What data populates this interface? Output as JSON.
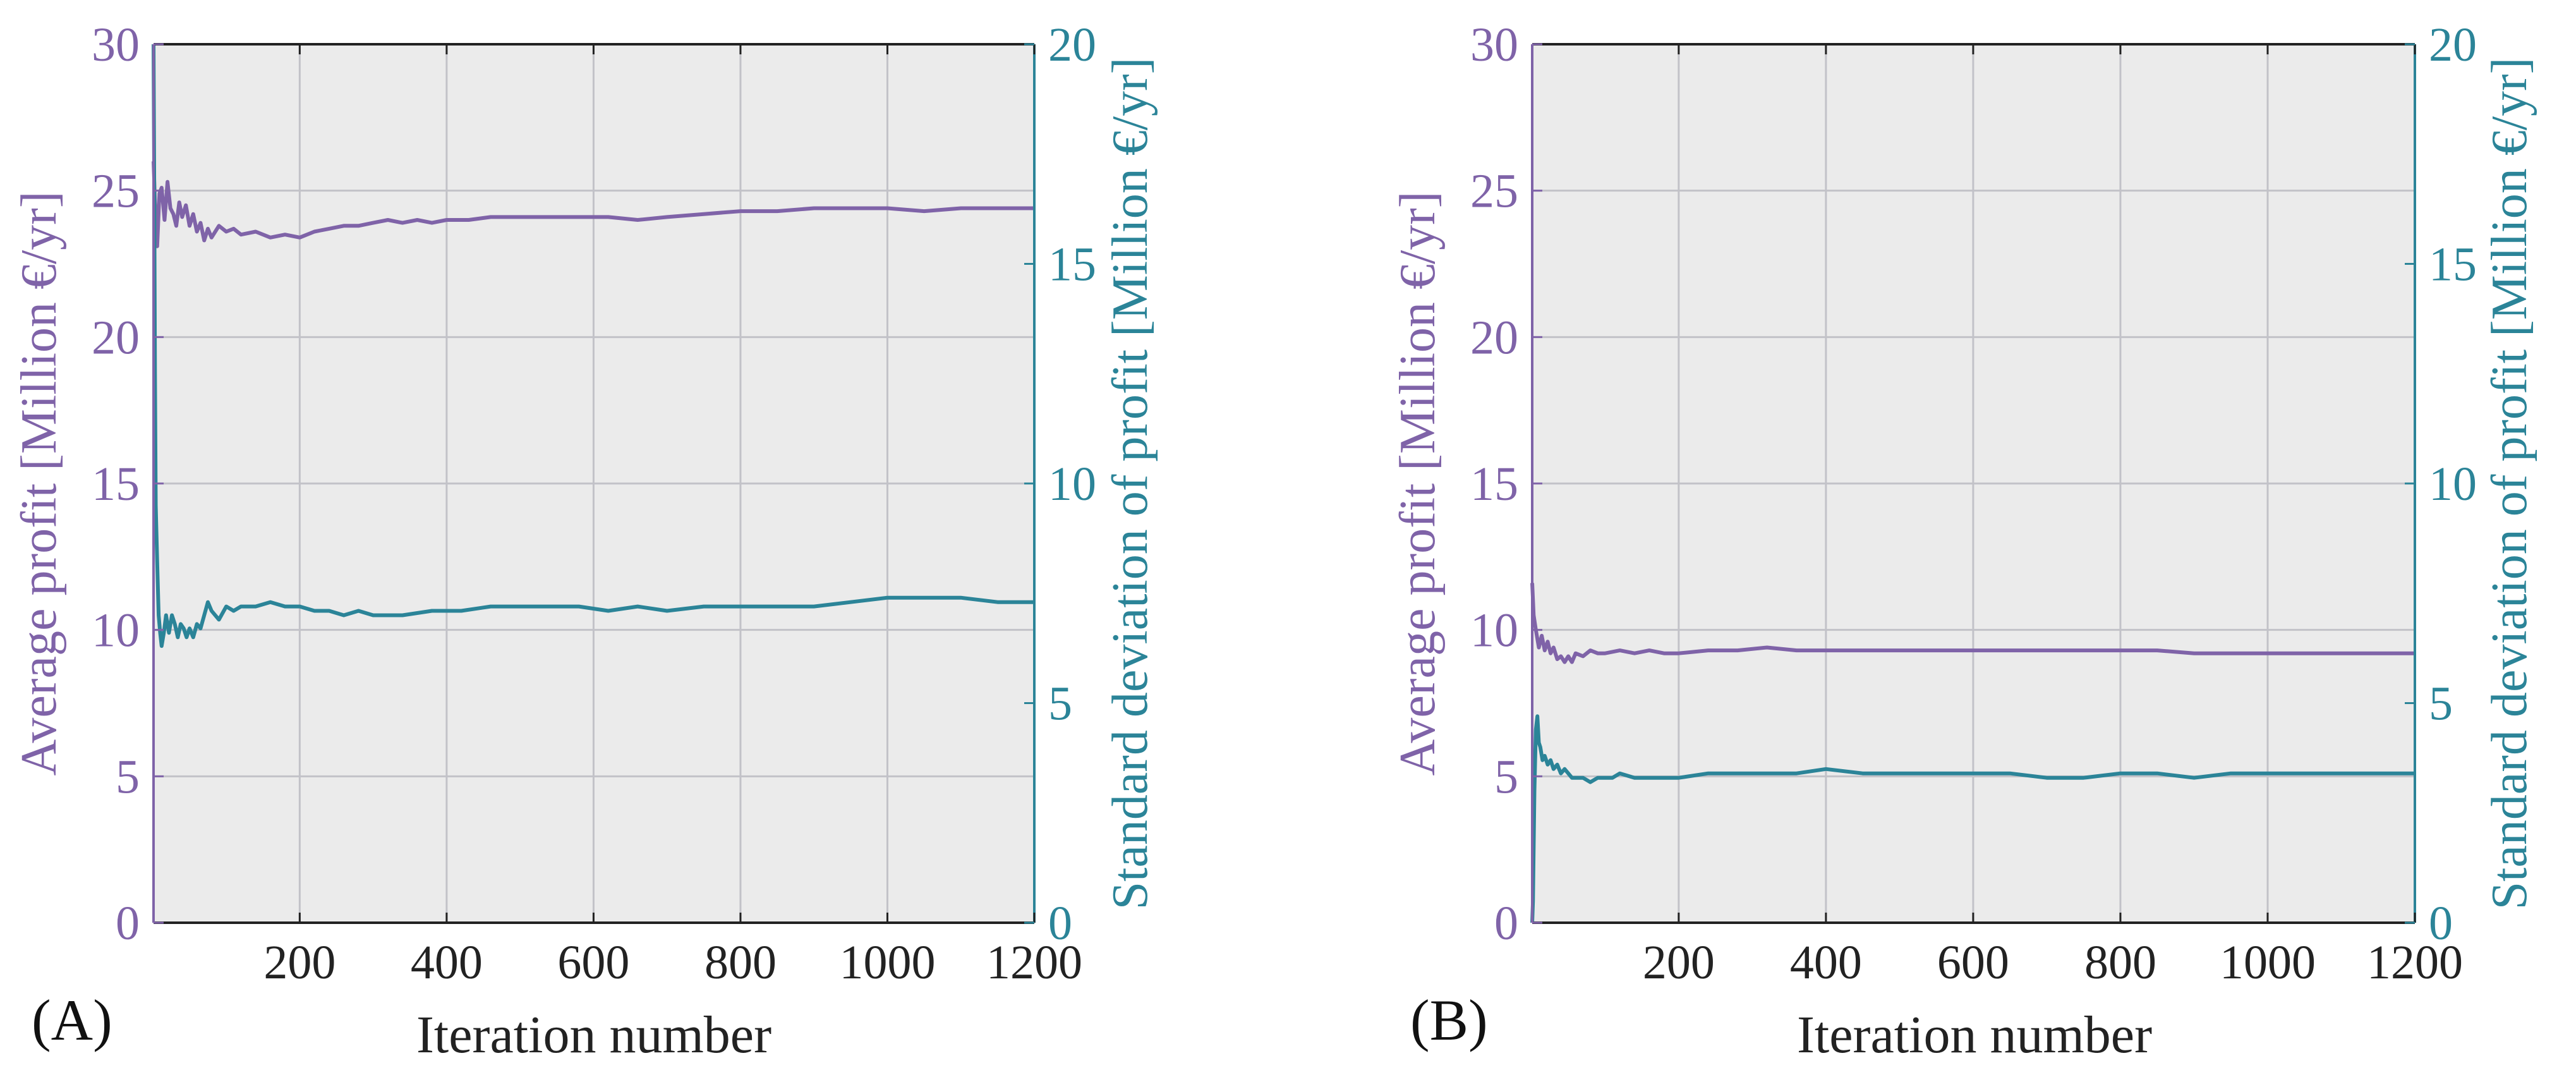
{
  "colors": {
    "left_axis": "#7F63A8",
    "right_axis": "#2B8498",
    "plot_bg": "#EBEBEB",
    "grid": "#C2C2C8",
    "axis_line": "#222222",
    "text": "#222222"
  },
  "chart_data": [
    {
      "type": "line",
      "panel_label": "(A)",
      "xlabel": "Iteration number",
      "ylabel_left": "Average profit [Million €/yr]",
      "ylabel_right": "Standard deviation of profit [Million €/yr]",
      "xlim": [
        1,
        1200
      ],
      "ylim_left": [
        0,
        30
      ],
      "ylim_right": [
        0,
        20
      ],
      "xticks": [
        200,
        400,
        600,
        800,
        1000,
        1200
      ],
      "xtick_labels": [
        "200",
        "400",
        "600",
        "800",
        "1000",
        "1200"
      ],
      "yticks_left": [
        0,
        5,
        10,
        15,
        20,
        25,
        30
      ],
      "ytick_labels_left": [
        "0",
        "5",
        "10",
        "15",
        "20",
        "25",
        "30"
      ],
      "yticks_right": [
        0,
        5,
        10,
        15,
        20
      ],
      "ytick_labels_right": [
        "0",
        "5",
        "10",
        "15",
        "20"
      ],
      "grid": true,
      "series": [
        {
          "name": "Average profit",
          "axis": "left",
          "x": [
            1,
            3,
            6,
            9,
            12,
            16,
            20,
            24,
            28,
            32,
            36,
            40,
            45,
            50,
            55,
            60,
            65,
            70,
            75,
            80,
            90,
            100,
            110,
            120,
            140,
            160,
            180,
            200,
            220,
            240,
            260,
            280,
            300,
            320,
            340,
            360,
            380,
            400,
            430,
            460,
            500,
            540,
            580,
            620,
            660,
            700,
            750,
            800,
            850,
            900,
            950,
            1000,
            1050,
            1100,
            1150,
            1200
          ],
          "values": [
            26.0,
            24.6,
            23.1,
            24.9,
            25.1,
            24.0,
            25.3,
            24.4,
            24.2,
            23.8,
            24.6,
            24.1,
            24.5,
            23.8,
            24.2,
            23.6,
            23.9,
            23.3,
            23.7,
            23.4,
            23.8,
            23.6,
            23.7,
            23.5,
            23.6,
            23.4,
            23.5,
            23.4,
            23.6,
            23.7,
            23.8,
            23.8,
            23.9,
            24.0,
            23.9,
            24.0,
            23.9,
            24.0,
            24.0,
            24.1,
            24.1,
            24.1,
            24.1,
            24.1,
            24.0,
            24.1,
            24.2,
            24.3,
            24.3,
            24.4,
            24.4,
            24.4,
            24.3,
            24.4,
            24.4,
            24.4
          ]
        },
        {
          "name": "Standard deviation of profit",
          "axis": "right",
          "x": [
            1,
            2,
            3,
            4,
            6,
            8,
            10,
            12,
            15,
            18,
            22,
            26,
            30,
            34,
            38,
            42,
            46,
            50,
            55,
            60,
            65,
            70,
            75,
            80,
            90,
            100,
            110,
            120,
            140,
            160,
            180,
            200,
            220,
            240,
            260,
            280,
            300,
            340,
            380,
            420,
            460,
            500,
            540,
            580,
            620,
            660,
            700,
            750,
            800,
            850,
            900,
            950,
            1000,
            1050,
            1100,
            1150,
            1200
          ],
          "values": [
            20.0,
            16.5,
            12.5,
            9.5,
            8.2,
            7.0,
            6.6,
            6.3,
            6.6,
            7.0,
            6.6,
            7.0,
            6.8,
            6.5,
            6.8,
            6.7,
            6.5,
            6.7,
            6.5,
            6.8,
            6.7,
            7.0,
            7.3,
            7.1,
            6.9,
            7.2,
            7.1,
            7.2,
            7.2,
            7.3,
            7.2,
            7.2,
            7.1,
            7.1,
            7.0,
            7.1,
            7.0,
            7.0,
            7.1,
            7.1,
            7.2,
            7.2,
            7.2,
            7.2,
            7.1,
            7.2,
            7.1,
            7.2,
            7.2,
            7.2,
            7.2,
            7.3,
            7.4,
            7.4,
            7.4,
            7.3,
            7.3
          ]
        }
      ]
    },
    {
      "type": "line",
      "panel_label": "(B)",
      "xlabel": "Iteration number",
      "ylabel_left": "Average profit [Million €/yr]",
      "ylabel_right": "Standard deviation of profit [Million €/yr]",
      "xlim": [
        1,
        1200
      ],
      "ylim_left": [
        0,
        30
      ],
      "ylim_right": [
        0,
        20
      ],
      "xticks": [
        200,
        400,
        600,
        800,
        1000,
        1200
      ],
      "xtick_labels": [
        "200",
        "400",
        "600",
        "800",
        "1000",
        "1200"
      ],
      "yticks_left": [
        0,
        5,
        10,
        15,
        20,
        25,
        30
      ],
      "ytick_labels_left": [
        "0",
        "5",
        "10",
        "15",
        "20",
        "25",
        "30"
      ],
      "yticks_right": [
        0,
        5,
        10,
        15,
        20
      ],
      "ytick_labels_right": [
        "0",
        "5",
        "10",
        "15",
        "20"
      ],
      "grid": true,
      "series": [
        {
          "name": "Average profit",
          "axis": "left",
          "x": [
            1,
            3,
            6,
            10,
            14,
            18,
            22,
            26,
            30,
            35,
            40,
            45,
            50,
            55,
            60,
            70,
            80,
            90,
            100,
            120,
            140,
            160,
            180,
            200,
            240,
            280,
            320,
            360,
            400,
            450,
            500,
            550,
            600,
            650,
            700,
            750,
            800,
            850,
            900,
            950,
            1000,
            1050,
            1100,
            1150,
            1200
          ],
          "values": [
            11.6,
            10.5,
            10.0,
            9.4,
            9.8,
            9.3,
            9.6,
            9.2,
            9.4,
            9.0,
            9.1,
            8.9,
            9.1,
            8.9,
            9.2,
            9.1,
            9.3,
            9.2,
            9.2,
            9.3,
            9.2,
            9.3,
            9.2,
            9.2,
            9.3,
            9.3,
            9.4,
            9.3,
            9.3,
            9.3,
            9.3,
            9.3,
            9.3,
            9.3,
            9.3,
            9.3,
            9.3,
            9.3,
            9.2,
            9.2,
            9.2,
            9.2,
            9.2,
            9.2,
            9.2
          ]
        },
        {
          "name": "Standard deviation of profit",
          "axis": "right",
          "x": [
            1,
            2,
            4,
            6,
            8,
            10,
            12,
            15,
            18,
            22,
            26,
            30,
            35,
            40,
            45,
            50,
            55,
            60,
            70,
            80,
            90,
            100,
            110,
            120,
            140,
            160,
            180,
            200,
            240,
            280,
            320,
            360,
            400,
            450,
            500,
            550,
            600,
            650,
            700,
            750,
            800,
            850,
            900,
            950,
            1000,
            1050,
            1100,
            1150,
            1200
          ],
          "values": [
            0.0,
            0.5,
            3.0,
            4.4,
            4.7,
            4.1,
            4.0,
            3.7,
            3.8,
            3.6,
            3.7,
            3.5,
            3.6,
            3.4,
            3.5,
            3.4,
            3.3,
            3.3,
            3.3,
            3.2,
            3.3,
            3.3,
            3.3,
            3.4,
            3.3,
            3.3,
            3.3,
            3.3,
            3.4,
            3.4,
            3.4,
            3.4,
            3.5,
            3.4,
            3.4,
            3.4,
            3.4,
            3.4,
            3.3,
            3.3,
            3.4,
            3.4,
            3.3,
            3.4,
            3.4,
            3.4,
            3.4,
            3.4,
            3.4
          ]
        }
      ]
    }
  ]
}
